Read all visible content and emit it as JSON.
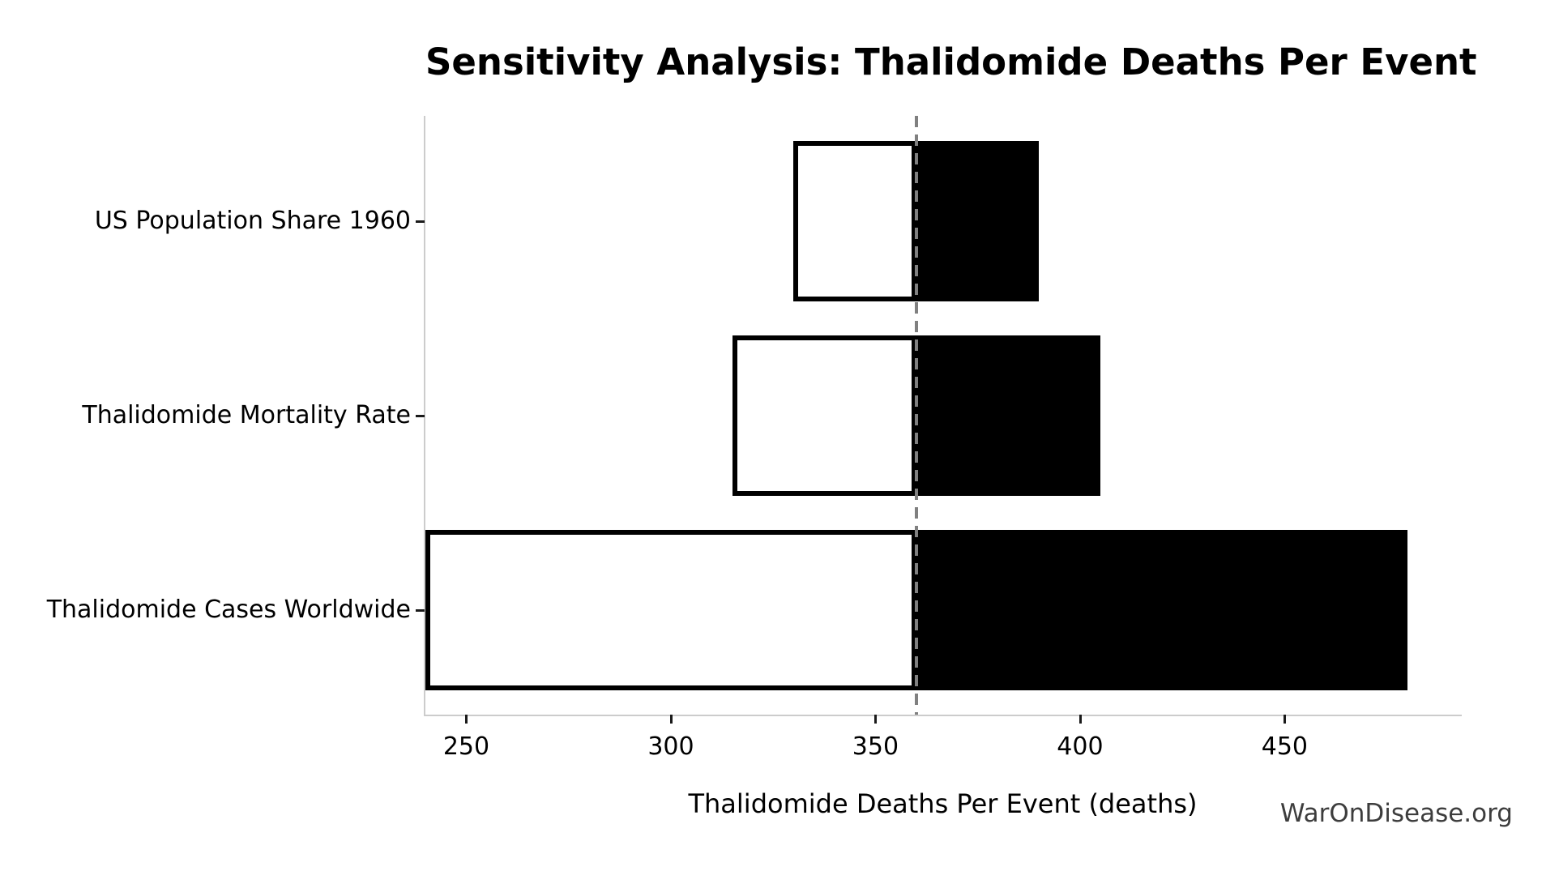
{
  "title": "Sensitivity Analysis: Thalidomide Deaths Per Event",
  "watermark": "WarOnDisease.org",
  "colors": {
    "background": "#ffffff",
    "bar_low_fill": "#ffffff",
    "bar_high_fill": "#000000",
    "bar_edge": "#000000",
    "baseline_line": "#808080",
    "spine": "#cccccc",
    "tick": "#1a1a1a",
    "text": "#000000",
    "watermark_text": "#3d3d3d"
  },
  "chart_data": {
    "type": "bar",
    "subtype": "tornado-horizontal",
    "title": "Sensitivity Analysis: Thalidomide Deaths Per Event",
    "xlabel": "Thalidomide Deaths Per Event (deaths)",
    "ylabel": "",
    "categories": [
      "US Population Share 1960",
      "Thalidomide Mortality Rate",
      "Thalidomide Cases Worldwide"
    ],
    "baseline": 360,
    "series": [
      {
        "name": "low-end",
        "values": [
          330,
          315,
          240
        ],
        "fill": "#ffffff",
        "edge": "#000000"
      },
      {
        "name": "high-end",
        "values": [
          390,
          405,
          480
        ],
        "fill": "#000000",
        "edge": "#000000"
      }
    ],
    "ranges": [
      {
        "category": "US Population Share 1960",
        "low": 330,
        "high": 390
      },
      {
        "category": "Thalidomide Mortality Rate",
        "low": 315,
        "high": 405
      },
      {
        "category": "Thalidomide Cases Worldwide",
        "low": 240,
        "high": 480
      }
    ],
    "xticks": [
      250,
      300,
      350,
      400,
      450
    ],
    "xlim": [
      240,
      492.9
    ],
    "grid": false,
    "legend": "none",
    "baseline_line": {
      "value": 360,
      "style": "dashed",
      "color": "#808080"
    }
  }
}
